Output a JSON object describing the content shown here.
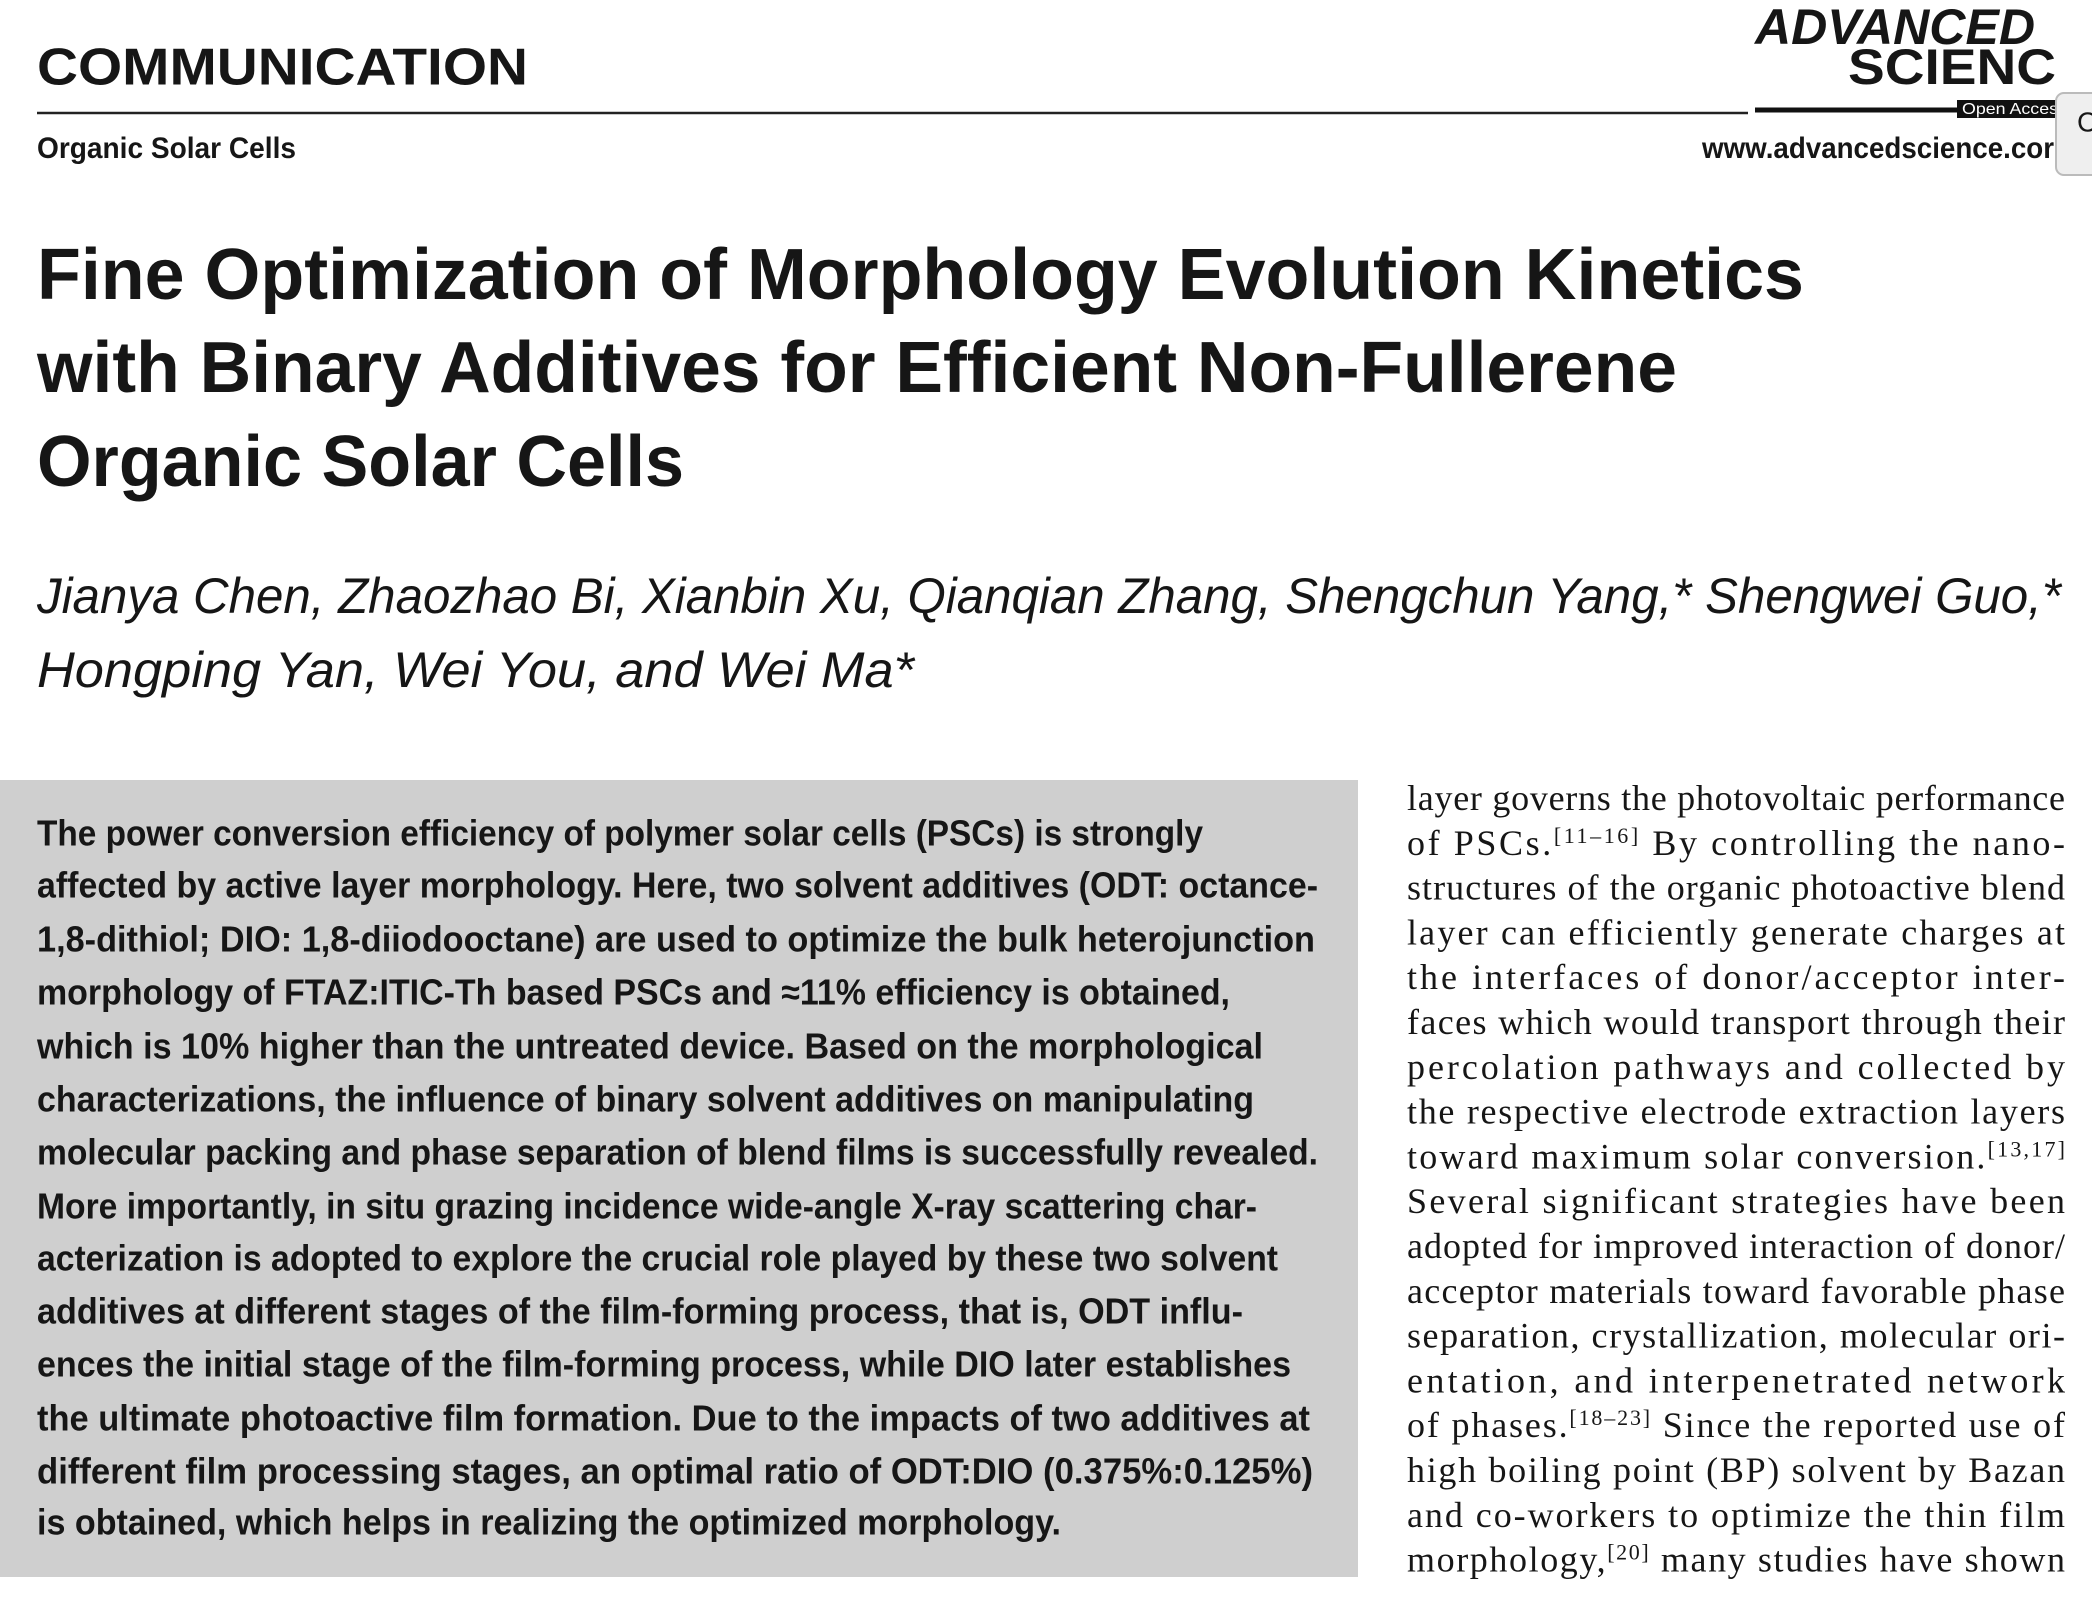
{
  "header": {
    "section": "COMMUNICATION",
    "topic": "Organic Solar Cells",
    "logo_line1": "ADVANCED",
    "logo_line2": "SCIENC",
    "logo_badge": "Open Acces",
    "url": "www.advancedscience.cor",
    "side_tab": "C"
  },
  "title_lines": [
    "Fine Optimization of Morphology Evolution Kinetics",
    "with Binary Additives for Efficient Non-Fullerene",
    "Organic Solar Cells"
  ],
  "author_lines": [
    "Jianya Chen, Zhaozhao Bi, Xianbin Xu, Qianqian Zhang, Shengchun Yang,* Shengwei Guo,*",
    "Hongping Yan, Wei You, and Wei Ma*"
  ],
  "abstract_lines": [
    "The power conversion efficiency of polymer solar cells (PSCs) is strongly",
    "affected by active layer morphology. Here, two solvent additives (ODT: octance-",
    "1,8-dithiol; DIO: 1,8-diiodooctane) are used to optimize the bulk heterojunction",
    "morphology of FTAZ:ITIC-Th based PSCs and ≈11% efficiency is obtained,",
    "which is 10% higher than the untreated device. Based on the morphological",
    "characterizations, the influence of binary solvent additives on manipulating",
    "molecular packing and phase separation of blend films is successfully revealed.",
    "More importantly, in situ grazing incidence wide-angle X-ray scattering char-",
    "acterization is adopted to explore the crucial role played by these two solvent",
    "additives at different stages of the film-forming process, that is, ODT influ-",
    "ences the initial stage of the film-forming process, while DIO later establishes",
    "the ultimate photoactive film formation. Due to the impacts of two additives at",
    "different film processing stages, an optimal ratio of ODT:DIO (0.375%:0.125%)",
    "is obtained, which helps in realizing the optimized morphology."
  ],
  "body_lines": [
    [
      "layer governs the photovoltaic performance"
    ],
    [
      "of PSCs.",
      {
        "sup": "[11–16]"
      },
      " By controlling the nano-"
    ],
    [
      "structures of the organic photoactive blend"
    ],
    [
      "layer can efficiently generate charges at"
    ],
    [
      "the interfaces of donor/acceptor inter-"
    ],
    [
      "faces which would transport through their"
    ],
    [
      "percolation pathways and collected by"
    ],
    [
      "the respective electrode extraction layers"
    ],
    [
      "toward maximum solar conversion.",
      {
        "sup": "[13,17]"
      }
    ],
    [
      "Several significant strategies have been"
    ],
    [
      "adopted for improved interaction of donor/"
    ],
    [
      "acceptor materials toward favorable phase"
    ],
    [
      "separation, crystallization, molecular ori-"
    ],
    [
      "entation, and interpenetrated network"
    ],
    [
      "of phases.",
      {
        "sup": "[18–23]"
      },
      " Since the reported use of"
    ],
    [
      "high boiling point (BP) solvent by Bazan"
    ],
    [
      "and co-workers to optimize the thin film"
    ],
    [
      "morphology,",
      {
        "sup": "[20]"
      },
      " many studies have shown"
    ]
  ]
}
